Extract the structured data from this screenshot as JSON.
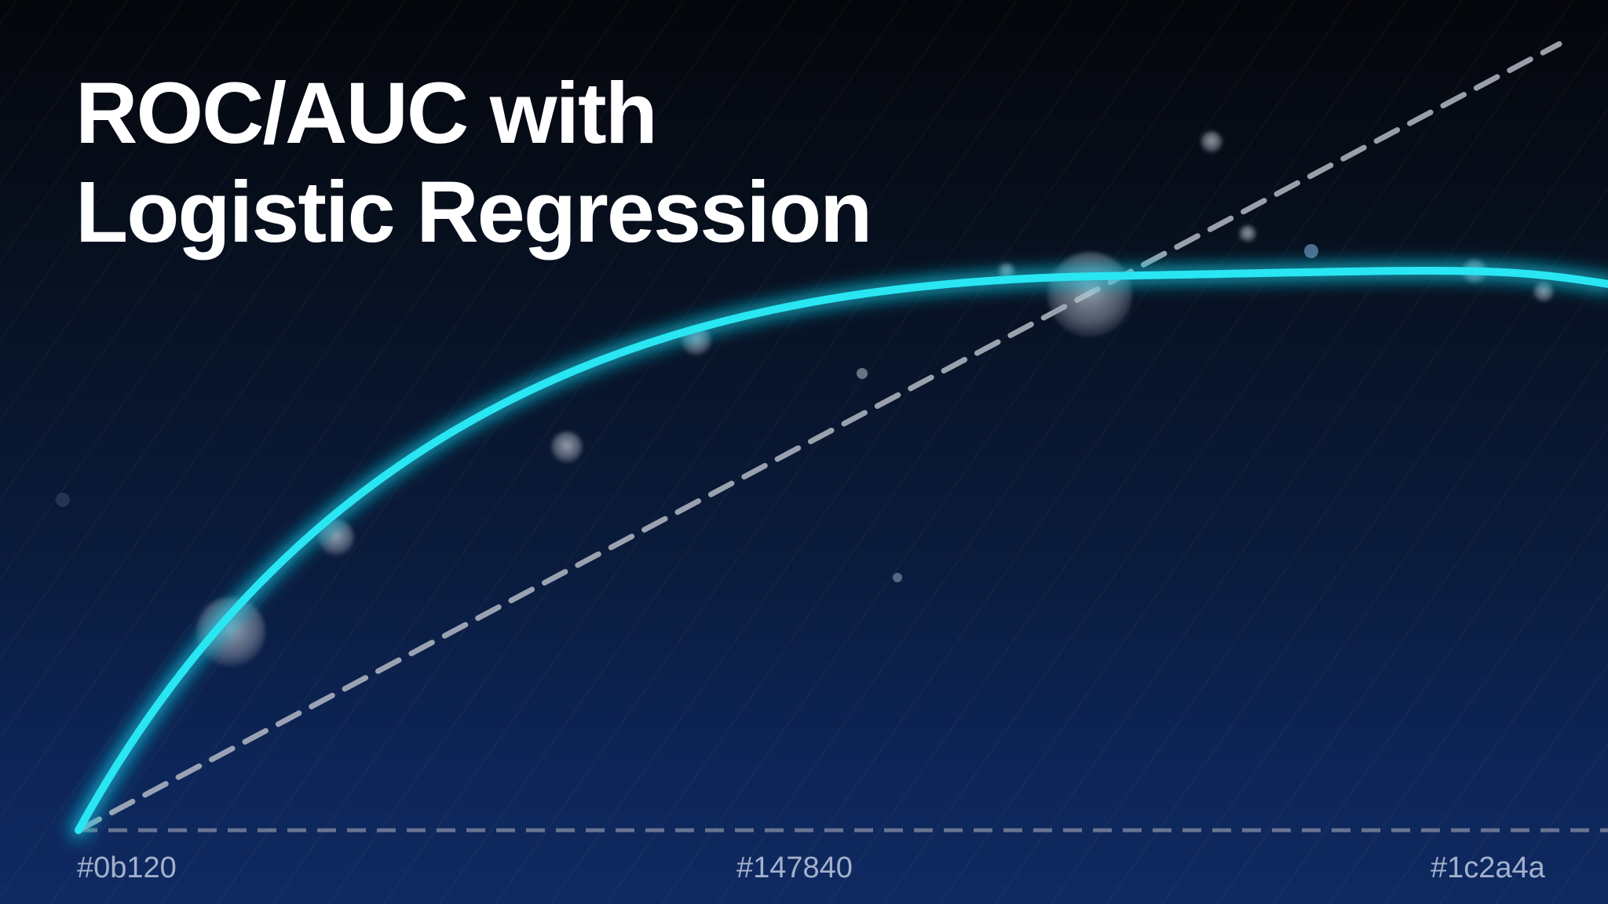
{
  "title": {
    "line1": "ROC/AUC with",
    "line2": "Logistic Regression"
  },
  "colors": {
    "curve": "#29e6f2",
    "curve_glow": "#16c8e0",
    "dashed": "#b4bac4",
    "title": "#ffffff",
    "gradient_stops": [
      "#0b120",
      "#147840",
      "#1c2a4a"
    ]
  },
  "swatch_labels": {
    "left": "#0b120",
    "center": "#147840",
    "right": "#1c2a4a"
  }
}
